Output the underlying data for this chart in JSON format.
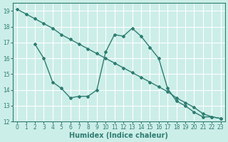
{
  "xlabel": "Humidex (Indice chaleur)",
  "bg_color": "#cceee8",
  "grid_color": "#ffffff",
  "line_color": "#2e7d72",
  "line1_x": [
    0,
    1,
    2,
    3,
    4,
    5,
    6,
    7,
    8,
    9,
    10,
    11,
    12,
    13,
    14,
    15,
    16,
    17,
    18,
    19,
    20,
    21,
    22,
    23
  ],
  "line1_y": [
    19.1,
    18.8,
    18.5,
    18.2,
    17.9,
    17.5,
    17.2,
    16.9,
    16.6,
    16.3,
    16.0,
    15.7,
    15.4,
    15.1,
    14.8,
    14.5,
    14.2,
    13.9,
    13.5,
    13.2,
    12.9,
    12.5,
    12.3,
    12.2
  ],
  "line2_x": [
    2,
    3,
    4,
    5,
    6,
    7,
    8,
    9,
    10,
    11,
    12,
    13,
    14,
    15,
    16,
    17,
    18,
    19,
    20,
    21,
    22,
    23
  ],
  "line2_y": [
    16.9,
    16.0,
    14.5,
    14.1,
    13.5,
    13.6,
    13.6,
    14.0,
    16.4,
    17.5,
    17.4,
    17.9,
    17.4,
    16.7,
    16.0,
    14.1,
    13.3,
    13.0,
    12.6,
    12.3,
    12.3,
    12.2
  ],
  "xlim": [
    -0.5,
    23.5
  ],
  "ylim": [
    12,
    19.5
  ],
  "yticks": [
    12,
    13,
    14,
    15,
    16,
    17,
    18,
    19
  ],
  "xticks": [
    0,
    1,
    2,
    3,
    4,
    5,
    6,
    7,
    8,
    9,
    10,
    11,
    12,
    13,
    14,
    15,
    16,
    17,
    18,
    19,
    20,
    21,
    22,
    23
  ],
  "figsize": [
    3.2,
    2.0
  ],
  "dpi": 100
}
